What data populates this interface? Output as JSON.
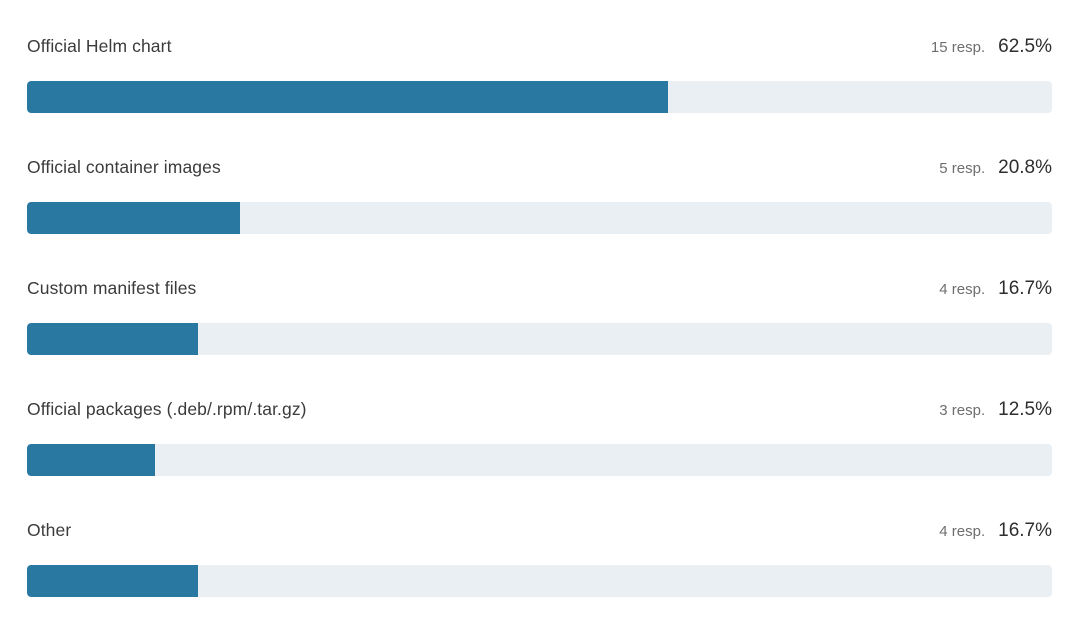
{
  "chart_data": {
    "type": "bar",
    "orientation": "horizontal",
    "title": "",
    "xlabel": "",
    "ylabel": "",
    "xlim": [
      0,
      100
    ],
    "grid": false,
    "bar_color": "#2878a2",
    "track_color": "#eaeff3",
    "categories": [
      "Official Helm chart",
      "Official container images",
      "Custom manifest files",
      "Official packages (.deb/.rpm/.tar.gz)",
      "Other"
    ],
    "values": [
      62.5,
      20.8,
      16.7,
      12.5,
      16.7
    ],
    "responses": [
      15,
      5,
      4,
      3,
      4
    ],
    "rows": [
      {
        "label": "Official Helm chart",
        "resp_text": "15 resp.",
        "pct_text": "62.5%",
        "value": 62.5
      },
      {
        "label": "Official container images",
        "resp_text": "5 resp.",
        "pct_text": "20.8%",
        "value": 20.8
      },
      {
        "label": "Custom manifest files",
        "resp_text": "4 resp.",
        "pct_text": "16.7%",
        "value": 16.7
      },
      {
        "label": "Official packages (.deb/.rpm/.tar.gz)",
        "resp_text": "3 resp.",
        "pct_text": "12.5%",
        "value": 12.5
      },
      {
        "label": "Other",
        "resp_text": "4 resp.",
        "pct_text": "16.7%",
        "value": 16.7
      }
    ]
  }
}
